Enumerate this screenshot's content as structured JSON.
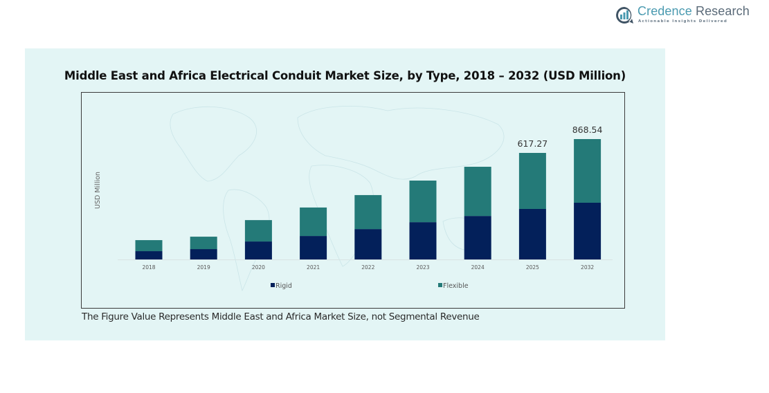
{
  "brand": {
    "name_part1": "Credence",
    "name_part2": "Research",
    "tagline": "Actionable Insights Delivered",
    "icon": "bar-chart-speech-bubble-icon"
  },
  "footnote": "The Figure Value Represents Middle East and Africa Market Size, not Segmental Revenue",
  "colors": {
    "panel_bg": "#e3f5f5",
    "rigid": "#03205a",
    "flexible": "#247a78",
    "brand_blue": "#4a9ab0"
  },
  "chart_data": {
    "type": "bar",
    "stacked": true,
    "title": "Middle East and Africa Electrical Conduit Market Size, by Type, 2018 – 2032 (USD Million)",
    "xlabel": "",
    "ylabel": "USD Million",
    "categories": [
      "2018",
      "2019",
      "2020",
      "2021",
      "2022",
      "2023",
      "2024",
      "2025",
      "2032"
    ],
    "series": [
      {
        "name": "Rigid",
        "color": "#03205a",
        "values": [
          48,
          60,
          104,
          136,
          176,
          216,
          252,
          292.6,
          409.4
        ]
      },
      {
        "name": "Flexible",
        "color": "#247a78",
        "values": [
          64,
          72,
          124,
          165,
          197,
          241,
          285,
          324.67,
          459.14
        ]
      }
    ],
    "totals": [
      112,
      132,
      228,
      301,
      373,
      457,
      537,
      617.27,
      868.54
    ],
    "data_labels": [
      {
        "category": "2025",
        "text": "617.27"
      },
      {
        "category": "2032",
        "text": "868.54"
      }
    ],
    "y_axis_visible": false,
    "grid": false,
    "legend": {
      "position": "bottom",
      "entries": [
        "Rigid",
        "Flexible"
      ]
    },
    "background": "world-map-watermark"
  }
}
